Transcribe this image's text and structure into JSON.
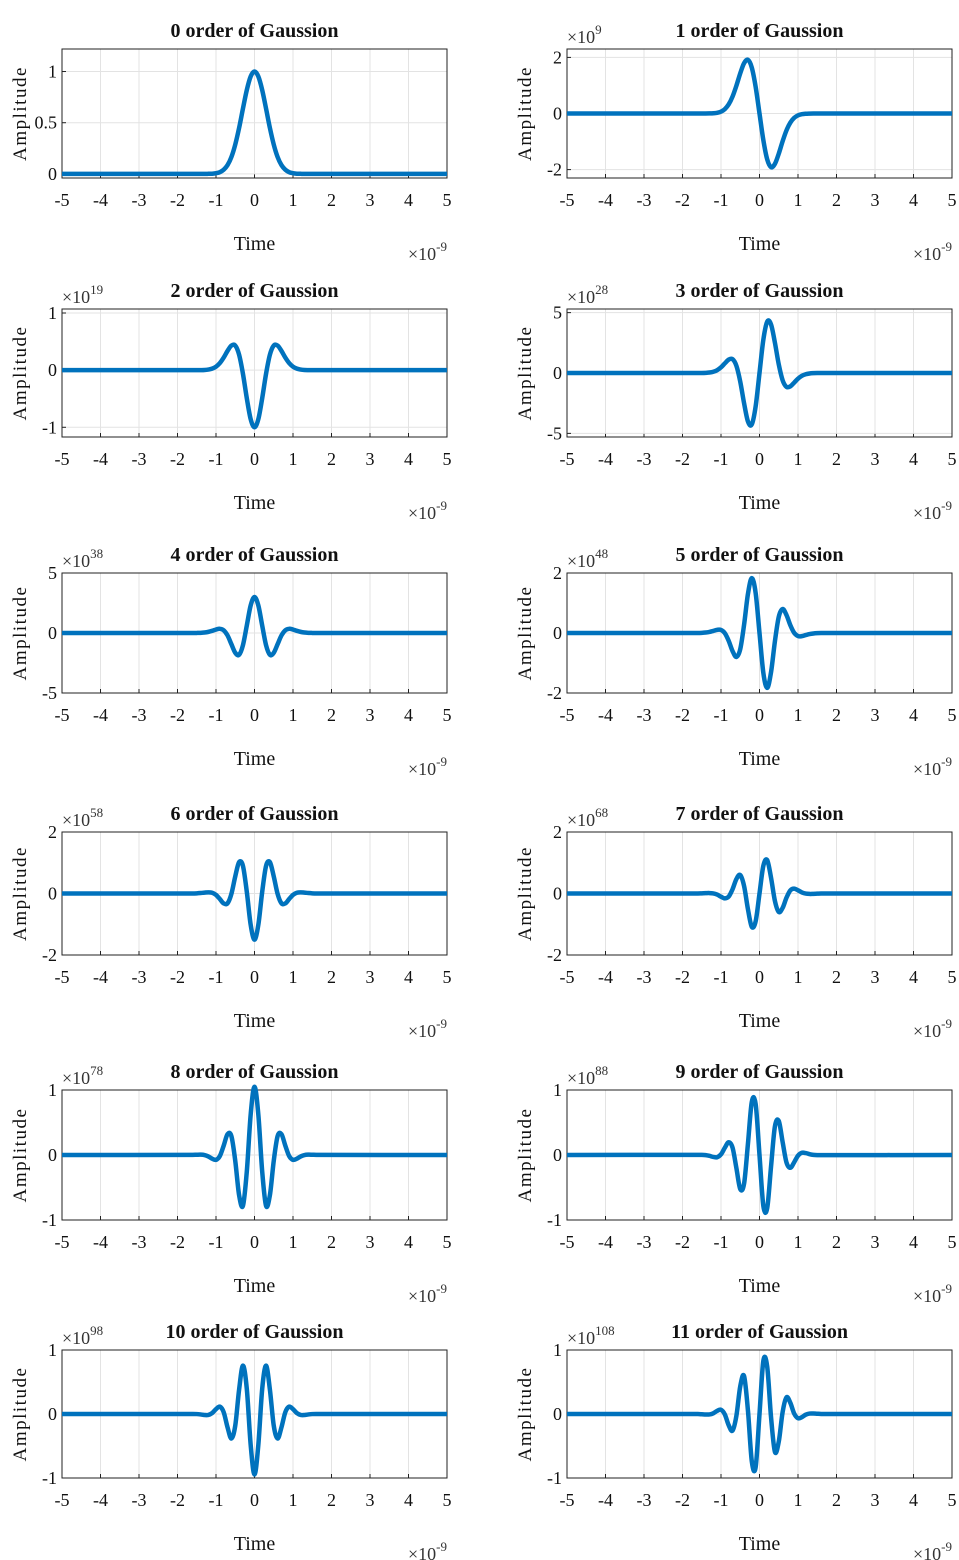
{
  "chart_data": [
    {
      "type": "line",
      "title": "0 order of Gaussion",
      "xlabel": "Time",
      "ylabel": "Amplitude",
      "x_multiplier": "×10",
      "x_exponent": "-9",
      "color": "#0072BD",
      "grid": true,
      "xlim": [
        -5,
        5
      ],
      "xticks": [
        -5,
        -4,
        -3,
        -2,
        -1,
        0,
        1,
        2,
        3,
        4,
        5
      ],
      "ylim": [
        -0.04,
        1.22
      ],
      "yticks": [
        0,
        0.5,
        1
      ],
      "x": [
        -5,
        -1.6,
        -1.5,
        -1.4,
        -1.3,
        -1.2,
        -1.1,
        -1.0,
        -0.9,
        -0.8,
        -0.7,
        -0.6,
        -0.5,
        -0.4,
        -0.3,
        -0.2,
        -0.1,
        0,
        0.1,
        0.2,
        0.3,
        0.4,
        0.5,
        0.6,
        0.7,
        0.8,
        0.9,
        1.0,
        1.1,
        1.2,
        1.3,
        1.4,
        1.5,
        1.6,
        5
      ],
      "values": [
        0,
        0,
        0,
        0,
        0,
        0.001,
        0.002,
        0.007,
        0.017,
        0.041,
        0.086,
        0.165,
        0.287,
        0.449,
        0.638,
        0.819,
        0.951,
        1,
        0.951,
        0.819,
        0.638,
        0.449,
        0.287,
        0.165,
        0.086,
        0.041,
        0.017,
        0.007,
        0.002,
        0.001,
        0,
        0,
        0,
        0,
        0
      ]
    },
    {
      "type": "line",
      "title": "1 order of Gaussion",
      "xlabel": "Time",
      "ylabel": "Amplitude",
      "x_multiplier": "×10",
      "x_exponent": "-9",
      "y_multiplier": "×10",
      "y_exponent": "9",
      "color": "#0072BD",
      "grid": true,
      "xlim": [
        -5,
        5
      ],
      "xticks": [
        -5,
        -4,
        -3,
        -2,
        -1,
        0,
        1,
        2,
        3,
        4,
        5
      ],
      "ylim": [
        -2.3,
        2.3
      ],
      "yticks": [
        -2,
        0,
        2
      ],
      "x": [
        -5,
        -1.6,
        -1.5,
        -1.4,
        -1.3,
        -1.2,
        -1.1,
        -1.0,
        -0.9,
        -0.8,
        -0.7,
        -0.6,
        -0.5,
        -0.4,
        -0.3,
        -0.2,
        -0.1,
        0,
        0.1,
        0.2,
        0.3,
        0.4,
        0.5,
        0.6,
        0.7,
        0.8,
        0.9,
        1.0,
        1.1,
        1.2,
        1.3,
        1.4,
        1.5,
        1.6,
        5
      ],
      "values": [
        0,
        0,
        0,
        0.001,
        0.003,
        0.009,
        0.026,
        0.067,
        0.157,
        0.326,
        0.604,
        0.992,
        1.433,
        1.797,
        1.913,
        1.637,
        0.951,
        0,
        -0.951,
        -1.637,
        -1.913,
        -1.797,
        -1.433,
        -0.992,
        -0.604,
        -0.326,
        -0.157,
        -0.067,
        -0.026,
        -0.009,
        -0.003,
        -0.001,
        0,
        0,
        0
      ]
    },
    {
      "type": "line",
      "title": "2 order of Gaussion",
      "xlabel": "Time",
      "ylabel": "Amplitude",
      "x_multiplier": "×10",
      "x_exponent": "-9",
      "y_multiplier": "×10",
      "y_exponent": "19",
      "color": "#0072BD",
      "grid": true,
      "xlim": [
        -5,
        5
      ],
      "xticks": [
        -5,
        -4,
        -3,
        -2,
        -1,
        0,
        1,
        2,
        3,
        4,
        5
      ],
      "ylim": [
        -1.17,
        1.07
      ],
      "yticks": [
        -1,
        0,
        1
      ],
      "x": [
        -5,
        -1.6,
        -1.5,
        -1.4,
        -1.3,
        -1.2,
        -1.1,
        -1.0,
        -0.9,
        -0.8,
        -0.7,
        -0.6,
        -0.5,
        -0.4,
        -0.3,
        -0.2,
        -0.1,
        0,
        0.1,
        0.2,
        0.3,
        0.4,
        0.5,
        0.6,
        0.7,
        0.8,
        0.9,
        1.0,
        1.1,
        1.2,
        1.3,
        1.4,
        1.5,
        1.6,
        5
      ],
      "values": [
        0,
        0,
        0,
        0.001,
        0.003,
        0.01,
        0.026,
        0.061,
        0.124,
        0.22,
        0.337,
        0.43,
        0.43,
        0.27,
        -0.064,
        -0.491,
        -0.856,
        -1,
        -0.856,
        -0.491,
        -0.064,
        0.27,
        0.43,
        0.43,
        0.337,
        0.22,
        0.124,
        0.061,
        0.026,
        0.01,
        0.003,
        0.001,
        0,
        0,
        0
      ]
    },
    {
      "type": "line",
      "title": "3 order of Gaussion",
      "xlabel": "Time",
      "ylabel": "Amplitude",
      "x_multiplier": "×10",
      "x_exponent": "-9",
      "y_multiplier": "×10",
      "y_exponent": "28",
      "color": "#0072BD",
      "grid": true,
      "xlim": [
        -5,
        5
      ],
      "xticks": [
        -5,
        -4,
        -3,
        -2,
        -1,
        0,
        1,
        2,
        3,
        4,
        5
      ],
      "ylim": [
        -5.3,
        5.3
      ],
      "yticks": [
        -5,
        0,
        5
      ],
      "x": [
        -5,
        -1.6,
        -1.5,
        -1.4,
        -1.3,
        -1.2,
        -1.1,
        -1.0,
        -0.9,
        -0.8,
        -0.7,
        -0.6,
        -0.5,
        -0.4,
        -0.3,
        -0.2,
        -0.1,
        0,
        0.1,
        0.2,
        0.3,
        0.4,
        0.5,
        0.6,
        0.7,
        0.8,
        0.9,
        1.0,
        1.1,
        1.2,
        1.3,
        1.4,
        1.5,
        1.6,
        5
      ],
      "values": [
        0,
        0.001,
        0.004,
        0.013,
        0.039,
        0.102,
        0.236,
        0.472,
        0.8,
        1.109,
        1.148,
        0.595,
        -0.716,
        -2.516,
        -4.017,
        -4.257,
        -2.759,
        0,
        2.759,
        4.257,
        4.017,
        2.516,
        0.716,
        -0.595,
        -1.148,
        -1.109,
        -0.8,
        -0.472,
        -0.236,
        -0.102,
        -0.039,
        -0.013,
        -0.004,
        -0.001,
        0
      ]
    },
    {
      "type": "line",
      "title": "4 order of Gaussion",
      "xlabel": "Time",
      "ylabel": "Amplitude",
      "x_multiplier": "×10",
      "x_exponent": "-9",
      "y_multiplier": "×10",
      "y_exponent": "38",
      "color": "#0072BD",
      "grid": true,
      "xlim": [
        -5,
        5
      ],
      "xticks": [
        -5,
        -4,
        -3,
        -2,
        -1,
        0,
        1,
        2,
        3,
        4,
        5
      ],
      "ylim": [
        -5,
        5
      ],
      "yticks": [
        -5,
        0,
        5
      ],
      "x": [
        -5,
        -1.6,
        -1.5,
        -1.4,
        -1.3,
        -1.2,
        -1.1,
        -1.0,
        -0.9,
        -0.8,
        -0.7,
        -0.6,
        -0.5,
        -0.4,
        -0.3,
        -0.2,
        -0.1,
        0,
        0.1,
        0.2,
        0.3,
        0.4,
        0.5,
        0.6,
        0.7,
        0.8,
        0.9,
        1.0,
        1.1,
        1.2,
        1.3,
        1.4,
        1.5,
        1.6,
        5
      ],
      "values": [
        0,
        0.001,
        0.005,
        0.015,
        0.04,
        0.093,
        0.181,
        0.29,
        0.349,
        0.227,
        -0.206,
        -0.932,
        -1.647,
        -1.815,
        -1.014,
        0.622,
        2.292,
        3,
        2.292,
        0.622,
        -1.014,
        -1.815,
        -1.647,
        -0.932,
        -0.206,
        0.227,
        0.349,
        0.29,
        0.181,
        0.093,
        0.04,
        0.015,
        0.005,
        0.001,
        0
      ]
    },
    {
      "type": "line",
      "title": "5 order of Gaussion",
      "xlabel": "Time",
      "ylabel": "Amplitude",
      "x_multiplier": "×10",
      "x_exponent": "-9",
      "y_multiplier": "×10",
      "y_exponent": "48",
      "color": "#0072BD",
      "grid": true,
      "xlim": [
        -5,
        5
      ],
      "xticks": [
        -5,
        -4,
        -3,
        -2,
        -1,
        0,
        1,
        2,
        3,
        4,
        5
      ],
      "ylim": [
        -2,
        2
      ],
      "yticks": [
        -2,
        0,
        2
      ],
      "x": [
        -5,
        -1.6,
        -1.5,
        -1.4,
        -1.3,
        -1.2,
        -1.1,
        -1.0,
        -0.9,
        -0.8,
        -0.7,
        -0.6,
        -0.5,
        -0.4,
        -0.3,
        -0.2,
        -0.1,
        0,
        0.1,
        0.2,
        0.3,
        0.4,
        0.5,
        0.6,
        0.7,
        0.8,
        0.9,
        1.0,
        1.1,
        1.2,
        1.3,
        1.4,
        1.5,
        1.6,
        5
      ],
      "values": [
        0,
        0.002,
        0.006,
        0.016,
        0.037,
        0.07,
        0.105,
        0.101,
        -0.006,
        -0.262,
        -0.603,
        -0.797,
        -0.537,
        0.28,
        1.303,
        1.828,
        1.333,
        0,
        -1.333,
        -1.828,
        -1.303,
        -0.28,
        0.537,
        0.797,
        0.603,
        0.262,
        0.006,
        -0.101,
        -0.105,
        -0.07,
        -0.037,
        -0.016,
        -0.006,
        -0.002,
        0
      ]
    },
    {
      "type": "line",
      "title": "6 order of Gaussion",
      "xlabel": "Time",
      "ylabel": "Amplitude",
      "x_multiplier": "×10",
      "x_exponent": "-9",
      "y_multiplier": "×10",
      "y_exponent": "58",
      "color": "#0072BD",
      "grid": true,
      "xlim": [
        -5,
        5
      ],
      "xticks": [
        -5,
        -4,
        -3,
        -2,
        -1,
        0,
        1,
        2,
        3,
        4,
        5
      ],
      "ylim": [
        -2,
        2
      ],
      "yticks": [
        -2,
        0,
        2
      ],
      "x": [
        -5,
        -1.6,
        -1.5,
        -1.4,
        -1.3,
        -1.2,
        -1.1,
        -1.0,
        -0.9,
        -0.8,
        -0.7,
        -0.6,
        -0.5,
        -0.4,
        -0.3,
        -0.2,
        -0.1,
        0,
        0.1,
        0.2,
        0.3,
        0.4,
        0.5,
        0.6,
        0.7,
        0.8,
        0.9,
        1.0,
        1.1,
        1.2,
        1.3,
        1.4,
        1.5,
        1.6,
        5
      ],
      "values": [
        0,
        0.002,
        0.006,
        0.015,
        0.028,
        0.038,
        0.025,
        -0.044,
        -0.18,
        -0.323,
        -0.319,
        -0.012,
        0.555,
        1.02,
        0.897,
        0.054,
        -1.013,
        -1.5,
        -1.013,
        0.054,
        0.897,
        1.02,
        0.555,
        -0.012,
        -0.319,
        -0.323,
        -0.18,
        -0.044,
        0.025,
        0.038,
        0.028,
        0.015,
        0.006,
        0.002,
        0
      ]
    },
    {
      "type": "line",
      "title": "7 order of Gaussion",
      "xlabel": "Time",
      "ylabel": "Amplitude",
      "x_multiplier": "×10",
      "x_exponent": "-9",
      "y_multiplier": "×10",
      "y_exponent": "68",
      "color": "#0072BD",
      "grid": true,
      "xlim": [
        -5,
        5
      ],
      "xticks": [
        -5,
        -4,
        -3,
        -2,
        -1,
        0,
        1,
        2,
        3,
        4,
        5
      ],
      "ylim": [
        -2,
        2
      ],
      "yticks": [
        -2,
        0,
        2
      ],
      "x": [
        -5,
        -1.6,
        -1.5,
        -1.4,
        -1.3,
        -1.2,
        -1.1,
        -1.0,
        -0.9,
        -0.8,
        -0.7,
        -0.6,
        -0.5,
        -0.4,
        -0.3,
        -0.2,
        -0.1,
        0,
        0.1,
        0.2,
        0.3,
        0.4,
        0.5,
        0.6,
        0.7,
        0.8,
        0.9,
        1.0,
        1.1,
        1.2,
        1.3,
        1.4,
        1.5,
        1.6,
        5
      ],
      "values": [
        0,
        0.002,
        0.006,
        0.011,
        0.014,
        0.003,
        -0.036,
        -0.104,
        -0.158,
        -0.101,
        0.139,
        0.471,
        0.6,
        0.24,
        -0.512,
        -1.086,
        -0.901,
        0,
        0.901,
        1.086,
        0.512,
        -0.24,
        -0.6,
        -0.471,
        -0.139,
        0.101,
        0.158,
        0.104,
        0.036,
        -0.003,
        -0.014,
        -0.011,
        -0.006,
        -0.002,
        0
      ]
    },
    {
      "type": "line",
      "title": "8 order of Gaussion",
      "xlabel": "Time",
      "ylabel": "Amplitude",
      "x_multiplier": "×10",
      "x_exponent": "-9",
      "y_multiplier": "×10",
      "y_exponent": "78",
      "color": "#0072BD",
      "grid": true,
      "xlim": [
        -5,
        5
      ],
      "xticks": [
        -5,
        -4,
        -3,
        -2,
        -1,
        0,
        1,
        2,
        3,
        4,
        5
      ],
      "ylim": [
        -1,
        1
      ],
      "yticks": [
        -1,
        0,
        1
      ],
      "x": [
        -5,
        -1.6,
        -1.5,
        -1.4,
        -1.3,
        -1.2,
        -1.1,
        -1.0,
        -0.9,
        -0.8,
        -0.7,
        -0.6,
        -0.5,
        -0.4,
        -0.3,
        -0.2,
        -0.1,
        0,
        0.1,
        0.2,
        0.3,
        0.4,
        0.5,
        0.6,
        0.7,
        0.8,
        0.9,
        1.0,
        1.1,
        1.2,
        1.3,
        1.4,
        1.5,
        1.6,
        5
      ],
      "values": [
        0,
        0.002,
        0.004,
        0.005,
        -0.001,
        -0.022,
        -0.057,
        -0.074,
        -0.016,
        0.145,
        0.321,
        0.291,
        -0.089,
        -0.618,
        -0.782,
        -0.255,
        0.619,
        1.05,
        0.619,
        -0.255,
        -0.782,
        -0.618,
        -0.089,
        0.291,
        0.321,
        0.145,
        -0.016,
        -0.074,
        -0.057,
        -0.022,
        -0.001,
        0.005,
        0.004,
        0.002,
        0
      ]
    },
    {
      "type": "line",
      "title": "9 order of Gaussion",
      "xlabel": "Time",
      "ylabel": "Amplitude",
      "x_multiplier": "×10",
      "x_exponent": "-9",
      "y_multiplier": "×10",
      "y_exponent": "88",
      "color": "#0072BD",
      "grid": true,
      "xlim": [
        -5,
        5
      ],
      "xticks": [
        -5,
        -4,
        -3,
        -2,
        -1,
        0,
        1,
        2,
        3,
        4,
        5
      ],
      "ylim": [
        -1,
        1
      ],
      "yticks": [
        -1,
        0,
        1
      ],
      "x": [
        -5,
        -1.6,
        -1.5,
        -1.4,
        -1.3,
        -1.2,
        -1.1,
        -1.0,
        -0.9,
        -0.8,
        -0.7,
        -0.6,
        -0.5,
        -0.4,
        -0.3,
        -0.2,
        -0.1,
        0,
        0.1,
        0.2,
        0.3,
        0.4,
        0.5,
        0.6,
        0.7,
        0.8,
        0.9,
        1.0,
        1.1,
        1.2,
        1.3,
        1.4,
        1.5,
        1.6,
        5
      ],
      "values": [
        0,
        0.002,
        0.002,
        -0.002,
        -0.013,
        -0.03,
        -0.034,
        0.01,
        0.112,
        0.197,
        0.113,
        -0.202,
        -0.524,
        -0.439,
        0.175,
        0.817,
        0.783,
        0,
        -0.783,
        -0.817,
        -0.175,
        0.439,
        0.524,
        0.202,
        -0.113,
        -0.197,
        -0.112,
        -0.01,
        0.034,
        0.03,
        0.013,
        0.002,
        -0.002,
        -0.002,
        0
      ]
    },
    {
      "type": "line",
      "title": "10 order of Gaussion",
      "xlabel": "Time",
      "ylabel": "Amplitude",
      "x_multiplier": "×10",
      "x_exponent": "-9",
      "y_multiplier": "×10",
      "y_exponent": "98",
      "color": "#0072BD",
      "grid": true,
      "xlim": [
        -5,
        5
      ],
      "xticks": [
        -5,
        -4,
        -3,
        -2,
        -1,
        0,
        1,
        2,
        3,
        4,
        5
      ],
      "ylim": [
        -1,
        1
      ],
      "yticks": [
        -1,
        0,
        1
      ],
      "x": [
        -5,
        -1.6,
        -1.5,
        -1.4,
        -1.3,
        -1.2,
        -1.1,
        -1.0,
        -0.9,
        -0.8,
        -0.7,
        -0.6,
        -0.5,
        -0.4,
        -0.3,
        -0.2,
        -0.1,
        0,
        0.1,
        0.2,
        0.3,
        0.4,
        0.5,
        0.6,
        0.7,
        0.8,
        0.9,
        1.0,
        1.1,
        1.2,
        1.3,
        1.4,
        1.5,
        1.6,
        5
      ],
      "values": [
        0,
        0.001,
        -0.001,
        -0.007,
        -0.015,
        -0.015,
        0.014,
        0.076,
        0.115,
        0.027,
        -0.209,
        -0.383,
        -0.182,
        0.381,
        0.756,
        0.393,
        -0.479,
        -0.945,
        -0.479,
        0.393,
        0.756,
        0.381,
        -0.182,
        -0.383,
        -0.209,
        0.027,
        0.115,
        0.076,
        0.014,
        -0.015,
        -0.015,
        -0.007,
        -0.001,
        0.001,
        0
      ]
    },
    {
      "type": "line",
      "title": "11 order of Gaussion",
      "xlabel": "Time",
      "ylabel": "Amplitude",
      "x_multiplier": "×10",
      "x_exponent": "-9",
      "y_multiplier": "×10",
      "y_exponent": "108",
      "color": "#0072BD",
      "grid": true,
      "xlim": [
        -5,
        5
      ],
      "xticks": [
        -5,
        -4,
        -3,
        -2,
        -1,
        0,
        1,
        2,
        3,
        4,
        5
      ],
      "ylim": [
        -1,
        1
      ],
      "yticks": [
        -1,
        0,
        1
      ],
      "x": [
        -5,
        -1.6,
        -1.5,
        -1.4,
        -1.3,
        -1.2,
        -1.1,
        -1.0,
        -0.9,
        -0.8,
        -0.7,
        -0.6,
        -0.5,
        -0.4,
        -0.3,
        -0.2,
        -0.1,
        0,
        0.1,
        0.2,
        0.3,
        0.4,
        0.5,
        0.6,
        0.7,
        0.8,
        0.9,
        1.0,
        1.1,
        1.2,
        1.3,
        1.4,
        1.5,
        1.6,
        5
      ],
      "values": [
        0,
        -0.001,
        -0.004,
        -0.008,
        -0.007,
        0.011,
        0.049,
        0.066,
        -0.008,
        -0.176,
        -0.26,
        -0.028,
        0.433,
        0.591,
        0.052,
        -0.739,
        -0.83,
        0,
        0.83,
        0.739,
        -0.052,
        -0.591,
        -0.433,
        0.028,
        0.26,
        0.176,
        0.008,
        -0.066,
        -0.049,
        -0.011,
        0.007,
        0.008,
        0.004,
        0.001,
        0
      ]
    }
  ]
}
